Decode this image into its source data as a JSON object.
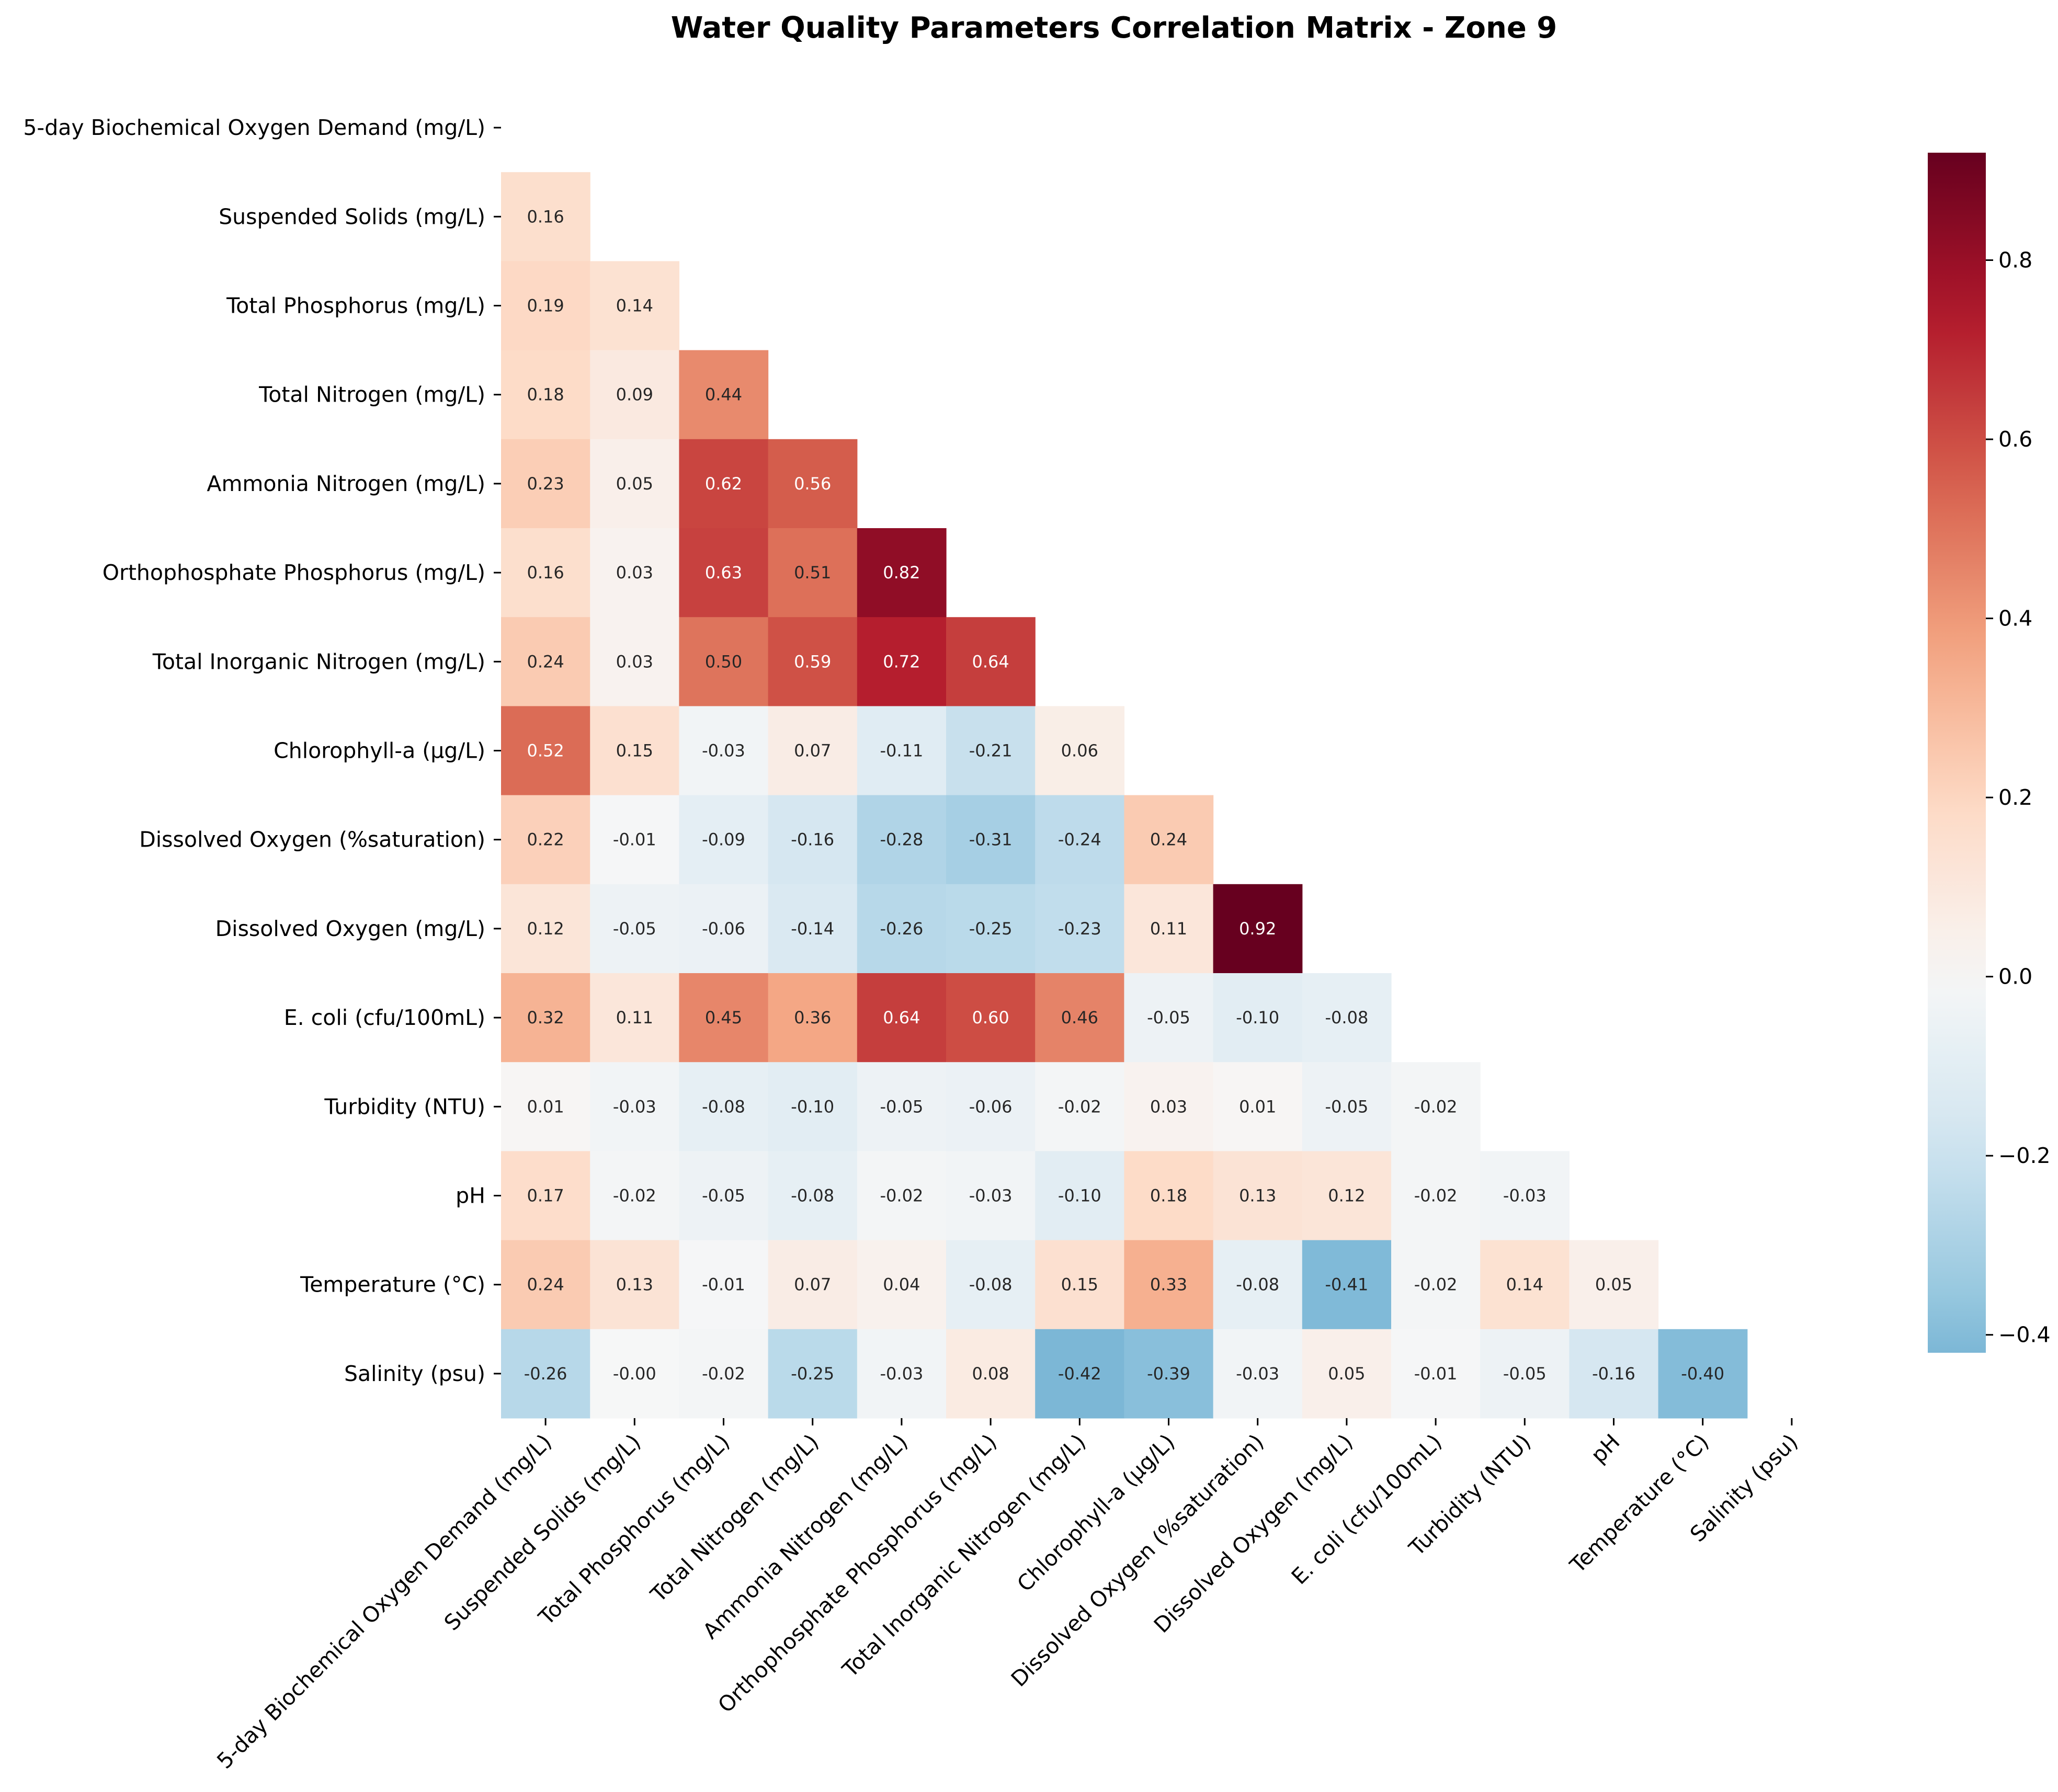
{
  "chart_data": {
    "type": "heatmap",
    "title": "Water Quality Parameters Correlation Matrix - Zone 9",
    "labels": [
      "5-day Biochemical Oxygen Demand (mg/L)",
      "Suspended Solids (mg/L)",
      "Total Phosphorus (mg/L)",
      "Total Nitrogen (mg/L)",
      "Ammonia Nitrogen (mg/L)",
      "Orthophosphate Phosphorus (mg/L)",
      "Total Inorganic Nitrogen (mg/L)",
      "Chlorophyll-a (µg/L)",
      "Dissolved Oxygen (%saturation)",
      "Dissolved Oxygen (mg/L)",
      "E. coli (cfu/100mL)",
      "Turbidity (NTU)",
      "pH",
      "Temperature (°C)",
      "Salinity (psu)"
    ],
    "lower_triangle_rows": [
      [],
      [
        0.16
      ],
      [
        0.19,
        0.14
      ],
      [
        0.18,
        0.09,
        0.44
      ],
      [
        0.23,
        0.05,
        0.62,
        0.56
      ],
      [
        0.16,
        0.03,
        0.63,
        0.51,
        0.82
      ],
      [
        0.24,
        0.03,
        0.5,
        0.59,
        0.72,
        0.64
      ],
      [
        0.52,
        0.15,
        -0.03,
        0.07,
        -0.11,
        -0.21,
        0.06
      ],
      [
        0.22,
        -0.01,
        -0.09,
        -0.16,
        -0.28,
        -0.31,
        -0.24,
        0.24
      ],
      [
        0.12,
        -0.05,
        -0.06,
        -0.14,
        -0.26,
        -0.25,
        -0.23,
        0.11,
        0.92
      ],
      [
        0.32,
        0.11,
        0.45,
        0.36,
        0.64,
        0.6,
        0.46,
        -0.05,
        -0.1,
        -0.08
      ],
      [
        0.01,
        -0.03,
        -0.08,
        -0.1,
        -0.05,
        -0.06,
        -0.02,
        0.03,
        0.01,
        -0.05,
        -0.02
      ],
      [
        0.17,
        -0.02,
        -0.05,
        -0.08,
        -0.02,
        -0.03,
        -0.1,
        0.18,
        0.13,
        0.12,
        -0.02,
        -0.03
      ],
      [
        0.24,
        0.13,
        -0.01,
        0.07,
        0.04,
        -0.08,
        0.15,
        0.33,
        -0.08,
        -0.41,
        -0.02,
        0.14,
        0.05
      ],
      [
        -0.26,
        -0.004,
        -0.02,
        -0.25,
        -0.03,
        0.08,
        -0.42,
        -0.39,
        -0.03,
        0.05,
        -0.01,
        -0.05,
        -0.16,
        -0.4
      ]
    ],
    "colormap": "RdBu_r",
    "color_range": [
      -0.42,
      0.92
    ],
    "colorbar_ticks": [
      -0.4,
      -0.2,
      0.0,
      0.2,
      0.4,
      0.6,
      0.8
    ],
    "colorbar_tick_labels": [
      "−0.4",
      "−0.2",
      "0.0",
      "0.2",
      "0.4",
      "0.6",
      "0.8"
    ],
    "value_format": "2 decimals"
  }
}
